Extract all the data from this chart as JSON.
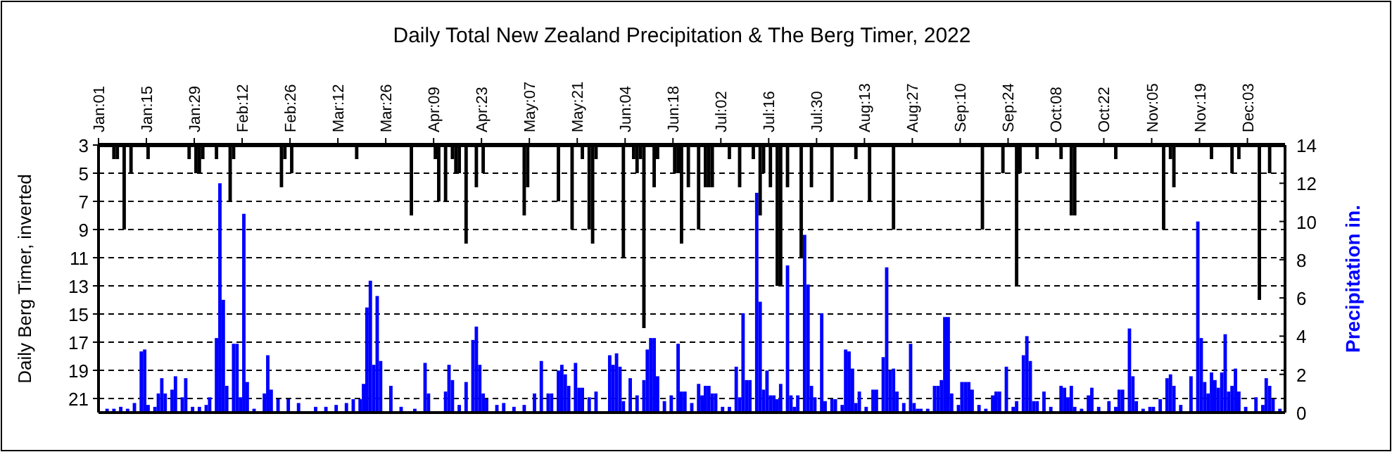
{
  "chart_data": {
    "type": "bar",
    "title": "Daily Total New Zealand Precipitation & The Berg Timer, 2022",
    "ylabel": "Daily Berg Timer, inverted",
    "y2label": "Precipitation in.",
    "xlim": [
      "2022-01-01",
      "2022-12-14"
    ],
    "xticks": [
      {
        "value": "2022-01-01",
        "label": "Jan:01"
      },
      {
        "value": "2022-01-15",
        "label": "Jan:15"
      },
      {
        "value": "2022-01-29",
        "label": "Jan:29"
      },
      {
        "value": "2022-02-12",
        "label": "Feb:12"
      },
      {
        "value": "2022-02-26",
        "label": "Feb:26"
      },
      {
        "value": "2022-03-12",
        "label": "Mar:12"
      },
      {
        "value": "2022-03-26",
        "label": "Mar:26"
      },
      {
        "value": "2022-04-09",
        "label": "Apr:09"
      },
      {
        "value": "2022-04-23",
        "label": "Apr:23"
      },
      {
        "value": "2022-05-07",
        "label": "May:07"
      },
      {
        "value": "2022-05-21",
        "label": "May:21"
      },
      {
        "value": "2022-06-04",
        "label": "Jun:04"
      },
      {
        "value": "2022-06-18",
        "label": "Jun:18"
      },
      {
        "value": "2022-07-02",
        "label": "Jul:02"
      },
      {
        "value": "2022-07-16",
        "label": "Jul:16"
      },
      {
        "value": "2022-07-30",
        "label": "Jul:30"
      },
      {
        "value": "2022-08-13",
        "label": "Aug:13"
      },
      {
        "value": "2022-08-27",
        "label": "Aug:27"
      },
      {
        "value": "2022-09-10",
        "label": "Sep:10"
      },
      {
        "value": "2022-09-24",
        "label": "Sep:24"
      },
      {
        "value": "2022-10-08",
        "label": "Oct:08"
      },
      {
        "value": "2022-10-22",
        "label": "Oct:22"
      },
      {
        "value": "2022-11-05",
        "label": "Nov:05"
      },
      {
        "value": "2022-11-19",
        "label": "Nov:19"
      },
      {
        "value": "2022-12-03",
        "label": "Dec:03"
      }
    ],
    "ylim": [
      22,
      3
    ],
    "yticks": [
      3,
      5,
      7,
      9,
      11,
      13,
      15,
      17,
      19,
      21
    ],
    "y2lim": [
      0,
      14
    ],
    "y2ticks": [
      0,
      2,
      4,
      6,
      8,
      10,
      12,
      14
    ],
    "grid": "y",
    "series": [
      {
        "color": "#0000ff",
        "axis": "y2",
        "x": [
          "2022-01-03",
          "2022-01-05",
          "2022-01-07",
          "2022-01-09",
          "2022-01-11",
          "2022-01-13",
          "2022-01-14",
          "2022-01-15",
          "2022-01-17",
          "2022-01-18",
          "2022-01-19",
          "2022-01-20",
          "2022-01-22",
          "2022-01-23",
          "2022-01-25",
          "2022-01-26",
          "2022-01-28",
          "2022-01-30",
          "2022-02-01",
          "2022-02-02",
          "2022-02-04",
          "2022-02-05",
          "2022-02-06",
          "2022-02-07",
          "2022-02-09",
          "2022-02-10",
          "2022-02-11",
          "2022-02-12",
          "2022-02-13",
          "2022-02-15",
          "2022-02-18",
          "2022-02-19",
          "2022-02-20",
          "2022-02-22",
          "2022-02-25",
          "2022-02-28",
          "2022-03-05",
          "2022-03-08",
          "2022-03-11",
          "2022-03-14",
          "2022-03-16",
          "2022-03-18",
          "2022-03-19",
          "2022-03-20",
          "2022-03-21",
          "2022-03-22",
          "2022-03-23",
          "2022-03-24",
          "2022-03-27",
          "2022-03-30",
          "2022-04-03",
          "2022-04-06",
          "2022-04-07",
          "2022-04-12",
          "2022-04-13",
          "2022-04-14",
          "2022-04-16",
          "2022-04-18",
          "2022-04-20",
          "2022-04-21",
          "2022-04-22",
          "2022-04-23",
          "2022-04-24",
          "2022-04-27",
          "2022-04-29",
          "2022-05-02",
          "2022-05-05",
          "2022-05-08",
          "2022-05-10",
          "2022-05-12",
          "2022-05-13",
          "2022-05-15",
          "2022-05-16",
          "2022-05-17",
          "2022-05-18",
          "2022-05-20",
          "2022-05-21",
          "2022-05-22",
          "2022-05-24",
          "2022-05-26",
          "2022-05-30",
          "2022-05-31",
          "2022-06-01",
          "2022-06-02",
          "2022-06-03",
          "2022-06-05",
          "2022-06-07",
          "2022-06-09",
          "2022-06-10",
          "2022-06-11",
          "2022-06-12",
          "2022-06-13",
          "2022-06-15",
          "2022-06-17",
          "2022-06-19",
          "2022-06-20",
          "2022-06-21",
          "2022-06-23",
          "2022-06-25",
          "2022-06-26",
          "2022-06-27",
          "2022-06-28",
          "2022-06-29",
          "2022-06-30",
          "2022-07-02",
          "2022-07-04",
          "2022-07-06",
          "2022-07-07",
          "2022-07-08",
          "2022-07-09",
          "2022-07-10",
          "2022-07-12",
          "2022-07-13",
          "2022-07-14",
          "2022-07-15",
          "2022-07-16",
          "2022-07-17",
          "2022-07-18",
          "2022-07-19",
          "2022-07-21",
          "2022-07-22",
          "2022-07-23",
          "2022-07-24",
          "2022-07-26",
          "2022-07-27",
          "2022-07-28",
          "2022-07-29",
          "2022-07-31",
          "2022-08-01",
          "2022-08-03",
          "2022-08-04",
          "2022-08-06",
          "2022-08-07",
          "2022-08-08",
          "2022-08-09",
          "2022-08-10",
          "2022-08-11",
          "2022-08-13",
          "2022-08-15",
          "2022-08-16",
          "2022-08-18",
          "2022-08-19",
          "2022-08-20",
          "2022-08-21",
          "2022-08-22",
          "2022-08-24",
          "2022-08-26",
          "2022-08-27",
          "2022-08-28",
          "2022-08-29",
          "2022-08-31",
          "2022-09-02",
          "2022-09-03",
          "2022-09-04",
          "2022-09-05",
          "2022-09-06",
          "2022-09-07",
          "2022-09-09",
          "2022-09-10",
          "2022-09-11",
          "2022-09-12",
          "2022-09-13",
          "2022-09-15",
          "2022-09-17",
          "2022-09-19",
          "2022-09-20",
          "2022-09-21",
          "2022-09-23",
          "2022-09-25",
          "2022-09-26",
          "2022-09-28",
          "2022-09-29",
          "2022-09-30",
          "2022-10-01",
          "2022-10-02",
          "2022-10-04",
          "2022-10-06",
          "2022-10-09",
          "2022-10-10",
          "2022-10-11",
          "2022-10-12",
          "2022-10-13",
          "2022-10-15",
          "2022-10-17",
          "2022-10-18",
          "2022-10-20",
          "2022-10-23",
          "2022-10-25",
          "2022-10-26",
          "2022-10-27",
          "2022-10-29",
          "2022-10-30",
          "2022-10-31",
          "2022-11-02",
          "2022-11-04",
          "2022-11-05",
          "2022-11-07",
          "2022-11-09",
          "2022-11-10",
          "2022-11-11",
          "2022-11-13",
          "2022-11-16",
          "2022-11-18",
          "2022-11-19",
          "2022-11-20",
          "2022-11-21",
          "2022-11-22",
          "2022-11-23",
          "2022-11-24",
          "2022-11-25",
          "2022-11-26",
          "2022-11-27",
          "2022-11-28",
          "2022-11-29",
          "2022-11-30",
          "2022-12-02",
          "2022-12-05",
          "2022-12-07",
          "2022-12-08",
          "2022-12-09",
          "2022-12-10",
          "2022-12-12"
        ],
        "values": [
          0.2,
          0.2,
          0.3,
          0.2,
          0.5,
          3.2,
          3.3,
          0.4,
          0.3,
          1.0,
          1.8,
          1.0,
          1.2,
          1.9,
          0.8,
          1.8,
          0.3,
          0.3,
          0.4,
          0.8,
          3.9,
          12.0,
          5.9,
          1.4,
          3.6,
          3.6,
          0.8,
          10.4,
          1.6,
          0.2,
          1.0,
          3.0,
          1.2,
          0.7,
          0.7,
          0.5,
          0.3,
          0.3,
          0.4,
          0.5,
          0.7,
          0.7,
          1.5,
          5.5,
          6.9,
          2.5,
          6.1,
          2.7,
          1.4,
          0.3,
          0.2,
          2.6,
          1.0,
          1.1,
          2.5,
          1.7,
          0.4,
          1.6,
          3.8,
          4.5,
          2.5,
          1.0,
          0.7,
          0.4,
          0.5,
          0.3,
          0.4,
          1.0,
          2.7,
          1.0,
          1.0,
          2.2,
          2.5,
          2.0,
          1.4,
          2.6,
          1.3,
          1.3,
          0.8,
          1.1,
          3.0,
          2.5,
          3.1,
          2.4,
          0.6,
          1.8,
          0.9,
          1.7,
          3.3,
          3.9,
          3.9,
          1.9,
          0.6,
          0.9,
          3.6,
          1.1,
          1.1,
          0.5,
          1.5,
          0.9,
          1.4,
          1.4,
          1.0,
          1.0,
          0.3,
          0.3,
          2.4,
          0.8,
          5.2,
          1.7,
          1.7,
          11.5,
          5.8,
          1.2,
          2.2,
          0.9,
          0.9,
          0.7,
          1.5,
          7.7,
          0.9,
          0.3,
          0.9,
          9.3,
          6.7,
          1.4,
          0.8,
          5.2,
          0.6,
          0.7,
          0.7,
          0.4,
          3.3,
          3.2,
          2.3,
          0.5,
          1.1,
          0.3,
          1.2,
          1.2,
          2.9,
          7.6,
          2.2,
          2.3,
          1.1,
          0.5,
          3.6,
          0.5,
          0.2,
          0.2,
          0.2,
          1.4,
          1.4,
          1.7,
          5.0,
          5.0,
          1.0,
          0.4,
          1.6,
          1.6,
          1.6,
          1.2,
          0.4,
          0.2,
          0.9,
          1.1,
          1.1,
          2.4,
          0.3,
          0.6,
          3.0,
          4.0,
          2.7,
          0.6,
          0.6,
          1.1,
          0.3,
          1.4,
          1.3,
          0.8,
          1.4,
          0.3,
          0.2,
          0.9,
          1.3,
          0.3,
          0.6,
          0.3,
          1.2,
          1.2,
          4.4,
          1.9,
          0.6,
          0.2,
          0.3,
          0.3,
          0.7,
          1.8,
          2.0,
          1.4,
          0.4,
          1.9,
          10.0,
          3.9,
          1.6,
          1.0,
          2.1,
          1.7,
          1.3,
          2.1,
          4.1,
          1.1,
          1.4,
          2.3,
          1.1,
          0.3,
          0.8,
          0.4,
          1.8,
          1.4,
          0.7,
          0.2
        ]
      },
      {
        "color": "#000000",
        "x": [
          "2022-01-05",
          "2022-01-06",
          "2022-01-08",
          "2022-01-10",
          "2022-01-15",
          "2022-01-27",
          "2022-01-29",
          "2022-01-30",
          "2022-01-31",
          "2022-02-04",
          "2022-02-08",
          "2022-02-09",
          "2022-02-23",
          "2022-02-24",
          "2022-02-26",
          "2022-03-17",
          "2022-04-02",
          "2022-04-09",
          "2022-04-10",
          "2022-04-12",
          "2022-04-14",
          "2022-04-15",
          "2022-04-16",
          "2022-04-18",
          "2022-04-21",
          "2022-04-23",
          "2022-05-05",
          "2022-05-06",
          "2022-05-15",
          "2022-05-19",
          "2022-05-22",
          "2022-05-24",
          "2022-05-25",
          "2022-05-26",
          "2022-06-03",
          "2022-06-06",
          "2022-06-07",
          "2022-06-08",
          "2022-06-09",
          "2022-06-12",
          "2022-06-13",
          "2022-06-18",
          "2022-06-19",
          "2022-06-20",
          "2022-06-22",
          "2022-06-25",
          "2022-06-27",
          "2022-06-28",
          "2022-06-29",
          "2022-07-04",
          "2022-07-07",
          "2022-07-11",
          "2022-07-13",
          "2022-07-14",
          "2022-07-16",
          "2022-07-18",
          "2022-07-19",
          "2022-07-21",
          "2022-07-25",
          "2022-07-28",
          "2022-08-03",
          "2022-08-10",
          "2022-08-14",
          "2022-08-21",
          "2022-09-16",
          "2022-09-22",
          "2022-09-26",
          "2022-09-27",
          "2022-10-02",
          "2022-10-09",
          "2022-10-12",
          "2022-10-13",
          "2022-10-25",
          "2022-11-08",
          "2022-11-10",
          "2022-11-11",
          "2022-11-22",
          "2022-11-28",
          "2022-11-30",
          "2022-12-06",
          "2022-12-09"
        ],
        "values": [
          4,
          4,
          9,
          5,
          4,
          4,
          5,
          5,
          4,
          4,
          7,
          4,
          6,
          4,
          5,
          4,
          8,
          4,
          7,
          7,
          4,
          5,
          5,
          10,
          6,
          5,
          8,
          6,
          7,
          9,
          4,
          9,
          10,
          4,
          11,
          4,
          5,
          4,
          16,
          6,
          4,
          5,
          5,
          10,
          6,
          9,
          6,
          6,
          6,
          4,
          6,
          4,
          8,
          5,
          6,
          13,
          13,
          6,
          11,
          6,
          7,
          4,
          7,
          9,
          9,
          5,
          13,
          5,
          4,
          4,
          8,
          8,
          4,
          9,
          4,
          6,
          4,
          5,
          4,
          14,
          5
        ]
      }
    ]
  }
}
